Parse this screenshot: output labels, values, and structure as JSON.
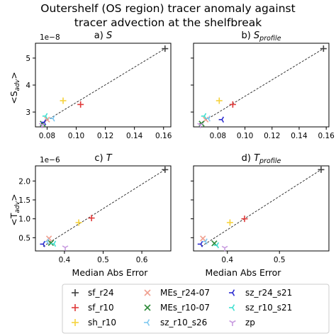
{
  "figure": {
    "title_line1": "Outershelf (OS region) tracer anomaly against",
    "title_line2": "tracer advection at the shelfbreak",
    "xlabel": "Median Abs Error",
    "ylabel_top": "<S",
    "ylabel_top_sub": "adv",
    "ylabel_top_end": ">",
    "ylabel_bottom": "<T",
    "ylabel_bottom_sub": "adv",
    "ylabel_bottom_end": ">",
    "multiplier_top": "1e−8",
    "multiplier_bottom": "1e−6"
  },
  "legend": {
    "entries": [
      {
        "label": "sf_r24",
        "color": "#404040",
        "marker": "plus"
      },
      {
        "label": "sf_r10",
        "color": "#e03a3a",
        "marker": "plus"
      },
      {
        "label": "sh_r10",
        "color": "#f5d23c",
        "marker": "plus"
      },
      {
        "label": "MEs_r24-07",
        "color": "#f0a090",
        "marker": "x"
      },
      {
        "label": "MEs_r10-07",
        "color": "#2e8b3a",
        "marker": "x"
      },
      {
        "label": "sz_r10_s26",
        "color": "#7ec8f0",
        "marker": "tri"
      },
      {
        "label": "sz_r24_s21",
        "color": "#2b2bd0",
        "marker": "tri"
      },
      {
        "label": "sz_r10_s21",
        "color": "#40e0d0",
        "marker": "tri"
      },
      {
        "label": "zp",
        "color": "#c89be0",
        "marker": "tri_down"
      }
    ]
  },
  "chart_data": [
    {
      "type": "scatter",
      "title_prefix": "a) ",
      "title_var": "S",
      "title_sub": "",
      "xlim": [
        0.072,
        0.165
      ],
      "ylim": [
        2.45,
        5.55
      ],
      "xticks": [
        0.08,
        0.1,
        0.12,
        0.14,
        0.16
      ],
      "xtick_labels": [
        "0.08",
        "0.10",
        "0.12",
        "0.14",
        "0.16"
      ],
      "yticks": [
        3,
        4,
        5
      ],
      "ytick_labels": [
        "3",
        "4",
        "5"
      ],
      "show_xticklabels": true,
      "show_yticklabels": true,
      "fit_line": {
        "x": [
          0.0755,
          0.161
        ],
        "y": [
          2.55,
          5.35
        ]
      },
      "points": [
        {
          "series": "sf_r24",
          "x": 0.161,
          "y": 5.35
        },
        {
          "series": "sf_r10",
          "x": 0.103,
          "y": 3.28
        },
        {
          "series": "sh_r10",
          "x": 0.091,
          "y": 3.42
        },
        {
          "series": "MEs_r24-07",
          "x": 0.08,
          "y": 2.72
        },
        {
          "series": "MEs_r10-07",
          "x": 0.077,
          "y": 2.57
        },
        {
          "series": "sz_r10_s26",
          "x": 0.084,
          "y": 2.76
        },
        {
          "series": "sz_r24_s21",
          "x": 0.078,
          "y": 2.62
        },
        {
          "series": "sz_r10_s21",
          "x": 0.079,
          "y": 2.85
        },
        {
          "series": "zp",
          "x": 0.0765,
          "y": 2.52
        }
      ]
    },
    {
      "type": "scatter",
      "title_prefix": "b) ",
      "title_var": "S",
      "title_sub": "profile",
      "xlim": [
        0.062,
        0.162
      ],
      "ylim": [
        2.45,
        5.55
      ],
      "xticks": [
        0.08,
        0.1,
        0.12,
        0.14,
        0.16
      ],
      "xtick_labels": [
        "0.08",
        "0.10",
        "0.12",
        "0.14",
        "0.16"
      ],
      "yticks": [
        3,
        4,
        5
      ],
      "ytick_labels": [
        "3",
        "4",
        "5"
      ],
      "show_xticklabels": true,
      "show_yticklabels": false,
      "fit_line": {
        "x": [
          0.066,
          0.158
        ],
        "y": [
          2.55,
          5.35
        ]
      },
      "points": [
        {
          "series": "sf_r24",
          "x": 0.158,
          "y": 5.35
        },
        {
          "series": "sf_r10",
          "x": 0.091,
          "y": 3.28
        },
        {
          "series": "sh_r10",
          "x": 0.081,
          "y": 3.42
        },
        {
          "series": "MEs_r24-07",
          "x": 0.071,
          "y": 2.72
        },
        {
          "series": "MEs_r10-07",
          "x": 0.068,
          "y": 2.57
        },
        {
          "series": "sz_r10_s26",
          "x": 0.073,
          "y": 2.76
        },
        {
          "series": "sz_r24_s21",
          "x": 0.083,
          "y": 2.72
        },
        {
          "series": "sz_r10_s21",
          "x": 0.07,
          "y": 2.85
        },
        {
          "series": "zp",
          "x": 0.067,
          "y": 2.52
        }
      ]
    },
    {
      "type": "scatter",
      "title_prefix": "c) ",
      "title_var": "T",
      "title_sub": "",
      "xlim": [
        0.325,
        0.675
      ],
      "ylim": [
        0.15,
        2.4
      ],
      "xticks": [
        0.4,
        0.5,
        0.6
      ],
      "xtick_labels": [
        "0.4",
        "0.5",
        "0.6"
      ],
      "yticks": [
        0.5,
        1.0,
        1.5,
        2.0
      ],
      "ytick_labels": [
        "0.5",
        "1.0",
        "1.5",
        "2.0"
      ],
      "show_xticklabels": true,
      "show_yticklabels": true,
      "fit_line": {
        "x": [
          0.345,
          0.66
        ],
        "y": [
          0.27,
          2.3
        ]
      },
      "points": [
        {
          "series": "sf_r24",
          "x": 0.66,
          "y": 2.3
        },
        {
          "series": "sf_r10",
          "x": 0.47,
          "y": 1.02
        },
        {
          "series": "sh_r10",
          "x": 0.437,
          "y": 0.9
        },
        {
          "series": "MEs_r24-07",
          "x": 0.36,
          "y": 0.48
        },
        {
          "series": "MEs_r10-07",
          "x": 0.365,
          "y": 0.36
        },
        {
          "series": "sz_r10_s26",
          "x": 0.355,
          "y": 0.4
        },
        {
          "series": "sz_r24_s21",
          "x": 0.345,
          "y": 0.33
        },
        {
          "series": "sz_r10_s21",
          "x": 0.373,
          "y": 0.34
        },
        {
          "series": "zp",
          "x": 0.402,
          "y": 0.24
        }
      ]
    },
    {
      "type": "scatter",
      "title_prefix": "d) ",
      "title_var": "T",
      "title_sub": "profile",
      "xlim": [
        0.335,
        0.595
      ],
      "ylim": [
        0.15,
        2.4
      ],
      "xticks": [
        0.4,
        0.5
      ],
      "xtick_labels": [
        "0.4",
        "0.5"
      ],
      "yticks": [
        0.5,
        1.0,
        1.5,
        2.0
      ],
      "ytick_labels": [
        "0.5",
        "1.0",
        "1.5",
        "2.0"
      ],
      "show_xticklabels": true,
      "show_yticklabels": false,
      "fit_line": {
        "x": [
          0.35,
          0.58
        ],
        "y": [
          0.27,
          2.3
        ]
      },
      "points": [
        {
          "series": "sf_r24",
          "x": 0.58,
          "y": 2.3
        },
        {
          "series": "sf_r10",
          "x": 0.433,
          "y": 1.0
        },
        {
          "series": "sh_r10",
          "x": 0.405,
          "y": 0.9
        },
        {
          "series": "MEs_r24-07",
          "x": 0.353,
          "y": 0.48
        },
        {
          "series": "MEs_r10-07",
          "x": 0.375,
          "y": 0.35
        },
        {
          "series": "sz_r10_s26",
          "x": 0.358,
          "y": 0.4
        },
        {
          "series": "sz_r24_s21",
          "x": 0.349,
          "y": 0.33
        },
        {
          "series": "sz_r10_s21",
          "x": 0.38,
          "y": 0.3
        },
        {
          "series": "zp",
          "x": 0.395,
          "y": 0.23
        }
      ]
    }
  ]
}
